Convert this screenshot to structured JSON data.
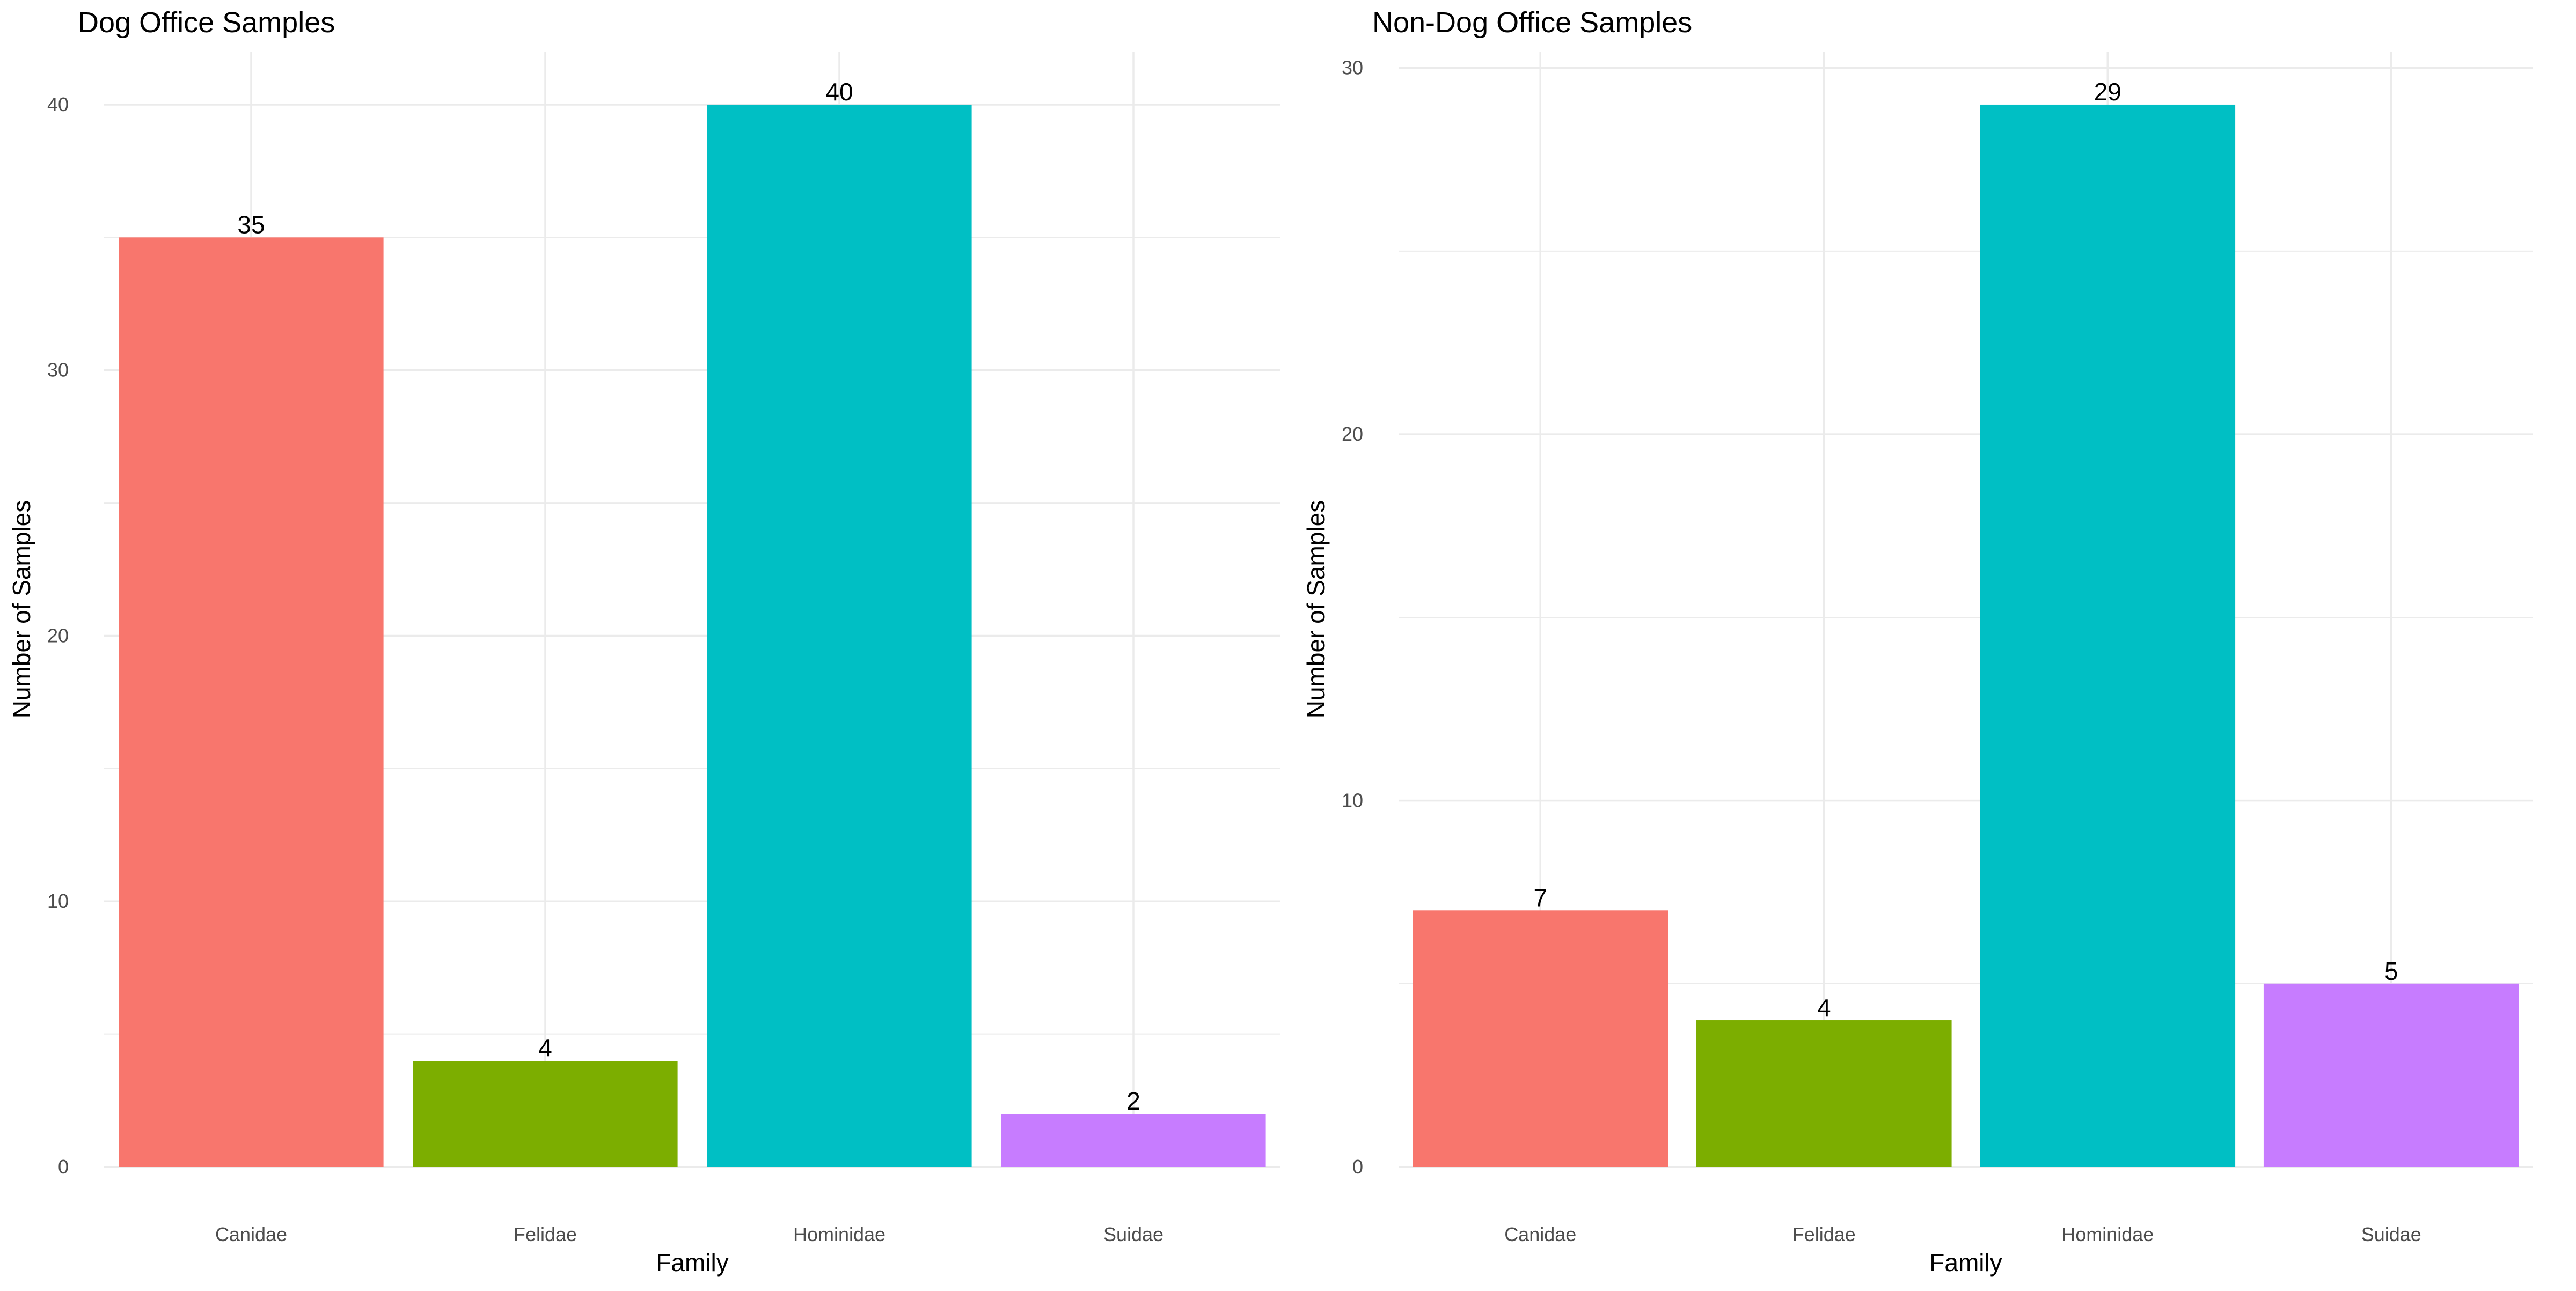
{
  "chart_data": [
    {
      "type": "bar",
      "title": "Dog Office Samples",
      "xlabel": "Family",
      "ylabel": "Number of Samples",
      "categories": [
        "Canidae",
        "Felidae",
        "Hominidae",
        "Suidae"
      ],
      "values": [
        35,
        4,
        40,
        2
      ],
      "ylim": [
        0,
        42
      ],
      "yticks": [
        0,
        10,
        20,
        30,
        40
      ],
      "grid": true,
      "legend": "none",
      "colors": [
        "#F8766D",
        "#7CAE00",
        "#00BFC4",
        "#C77CFF"
      ]
    },
    {
      "type": "bar",
      "title": "Non-Dog Office Samples",
      "xlabel": "Family",
      "ylabel": "Number of Samples",
      "categories": [
        "Canidae",
        "Felidae",
        "Hominidae",
        "Suidae"
      ],
      "values": [
        7,
        4,
        29,
        5
      ],
      "ylim": [
        0,
        30.45
      ],
      "yticks": [
        0,
        10,
        20,
        30
      ],
      "grid": true,
      "legend": "none",
      "colors": [
        "#F8766D",
        "#7CAE00",
        "#00BFC4",
        "#C77CFF"
      ]
    }
  ]
}
